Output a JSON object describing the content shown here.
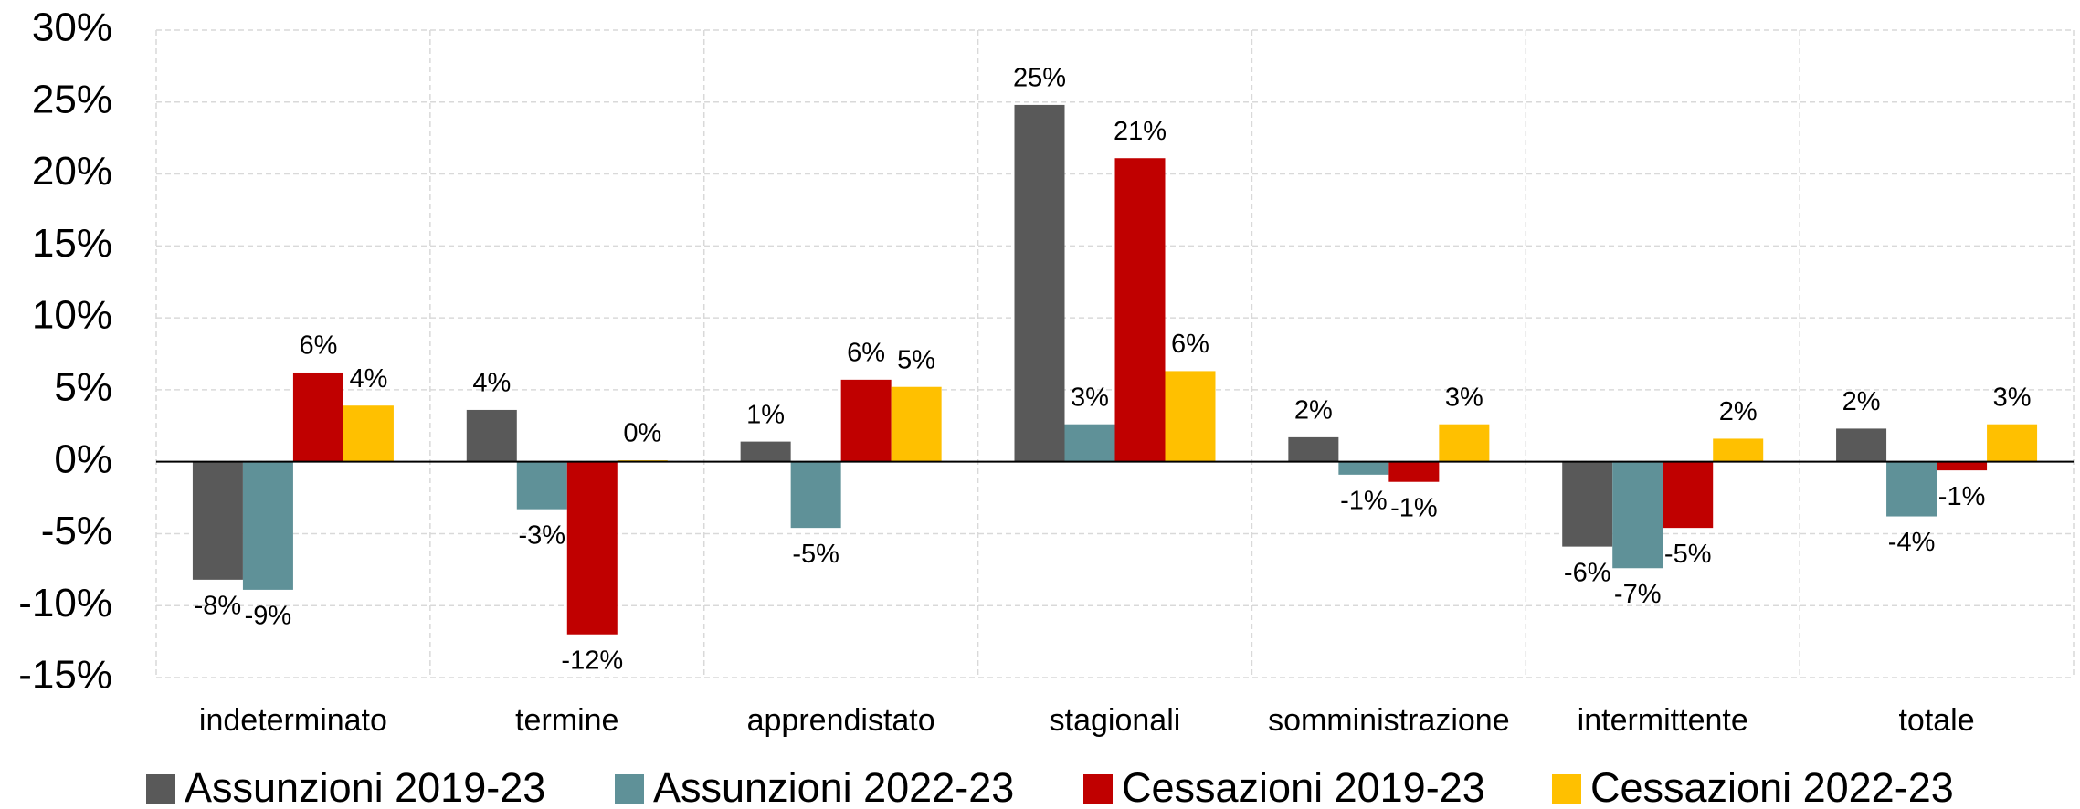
{
  "chart_data": {
    "type": "bar",
    "categories": [
      "indeterminato",
      "termine",
      "apprendistato",
      "stagionali",
      "somministrazione",
      "intermittente",
      "totale"
    ],
    "series": [
      {
        "name": "Assunzioni 2019-23",
        "color": "#595959",
        "values": [
          -8.2,
          3.6,
          1.4,
          24.8,
          1.7,
          -5.9,
          2.3
        ],
        "value_labels": [
          "-8%",
          "4%",
          "1%",
          "25%",
          "2%",
          "-6%",
          "2%"
        ]
      },
      {
        "name": "Assunzioni 2022-23",
        "color": "#5f9198",
        "values": [
          -8.9,
          -3.3,
          -4.6,
          2.6,
          -0.9,
          -7.4,
          -3.8
        ],
        "value_labels": [
          "-9%",
          "-3%",
          "-5%",
          "3%",
          "-1%",
          "-7%",
          "-4%"
        ]
      },
      {
        "name": "Cessazioni 2019-23",
        "color": "#c00000",
        "values": [
          6.2,
          -12.0,
          5.7,
          21.1,
          -1.4,
          -4.6,
          -0.6
        ],
        "value_labels": [
          "6%",
          "-12%",
          "6%",
          "21%",
          "-1%",
          "-5%",
          "-1%"
        ]
      },
      {
        "name": "Cessazioni 2022-23",
        "color": "#ffc000",
        "values": [
          3.9,
          0.1,
          5.2,
          6.3,
          2.6,
          1.6,
          2.6
        ],
        "value_labels": [
          "4%",
          "0%",
          "5%",
          "6%",
          "3%",
          "2%",
          "3%"
        ]
      }
    ],
    "ylim": [
      -15,
      30
    ],
    "yticks": [
      {
        "value": -15,
        "label": "-15%"
      },
      {
        "value": -10,
        "label": "-10%"
      },
      {
        "value": -5,
        "label": "-5%"
      },
      {
        "value": 0,
        "label": "0%"
      },
      {
        "value": 5,
        "label": "5%"
      },
      {
        "value": 10,
        "label": "10%"
      },
      {
        "value": 15,
        "label": "15%"
      },
      {
        "value": 20,
        "label": "20%"
      },
      {
        "value": 25,
        "label": "25%"
      },
      {
        "value": 30,
        "label": "30%"
      }
    ],
    "grid": true,
    "legend": "bottom"
  }
}
